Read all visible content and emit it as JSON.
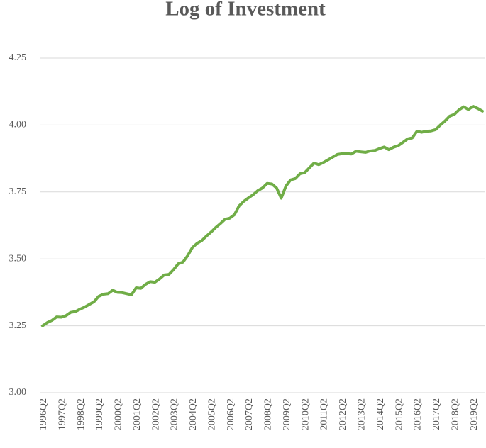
{
  "chart_data": {
    "type": "line",
    "title": "Log of Investment",
    "categories": [
      "1996Q2",
      null,
      null,
      null,
      "1997Q2",
      null,
      null,
      null,
      "1998Q2",
      null,
      null,
      null,
      "1999Q2",
      null,
      null,
      null,
      "2000Q2",
      null,
      null,
      null,
      "2001Q2",
      null,
      null,
      null,
      "2002Q2",
      null,
      null,
      null,
      "2003Q2",
      null,
      null,
      null,
      "2004Q2",
      null,
      null,
      null,
      "2005Q2",
      null,
      null,
      null,
      "2006Q2",
      null,
      null,
      null,
      "2007Q2",
      null,
      null,
      null,
      "2008Q2",
      null,
      null,
      null,
      "2009Q2",
      null,
      null,
      null,
      "2010Q2",
      null,
      null,
      null,
      "2011Q2",
      null,
      null,
      null,
      "2012Q2",
      null,
      null,
      null,
      "2013Q2",
      null,
      null,
      null,
      "2014Q2",
      null,
      null,
      null,
      "2015Q2",
      null,
      null,
      null,
      "2016Q2",
      null,
      null,
      null,
      "2017Q2",
      null,
      null,
      null,
      "2018Q2",
      null,
      null,
      null,
      "2019Q2",
      null,
      null
    ],
    "values": [
      3.25,
      3.262,
      3.27,
      3.283,
      3.282,
      3.288,
      3.3,
      3.303,
      3.312,
      3.32,
      3.33,
      3.34,
      3.36,
      3.368,
      3.37,
      3.383,
      3.375,
      3.374,
      3.37,
      3.366,
      3.392,
      3.39,
      3.405,
      3.415,
      3.413,
      3.425,
      3.44,
      3.442,
      3.46,
      3.482,
      3.488,
      3.512,
      3.542,
      3.558,
      3.568,
      3.585,
      3.6,
      3.617,
      3.632,
      3.648,
      3.652,
      3.665,
      3.698,
      3.715,
      3.728,
      3.74,
      3.755,
      3.765,
      3.782,
      3.78,
      3.765,
      3.727,
      3.772,
      3.795,
      3.8,
      3.818,
      3.822,
      3.84,
      3.858,
      3.852,
      3.86,
      3.87,
      3.88,
      3.89,
      3.893,
      3.893,
      3.892,
      3.902,
      3.9,
      3.898,
      3.903,
      3.905,
      3.912,
      3.918,
      3.908,
      3.917,
      3.923,
      3.935,
      3.948,
      3.952,
      3.977,
      3.973,
      3.977,
      3.978,
      3.983,
      4.0,
      4.015,
      4.033,
      4.04,
      4.057,
      4.068,
      4.058,
      4.07,
      4.062,
      4.052
    ],
    "color": "#70ad47",
    "ylim": [
      3.0,
      4.25
    ],
    "yticks": [
      {
        "value": 3.0,
        "label": "3.00"
      },
      {
        "value": 3.25,
        "label": "3.25"
      },
      {
        "value": 3.5,
        "label": "3.50"
      },
      {
        "value": 3.75,
        "label": "3.75"
      },
      {
        "value": 4.0,
        "label": "4.00"
      },
      {
        "value": 4.25,
        "label": "4.25"
      }
    ],
    "grid": true
  }
}
